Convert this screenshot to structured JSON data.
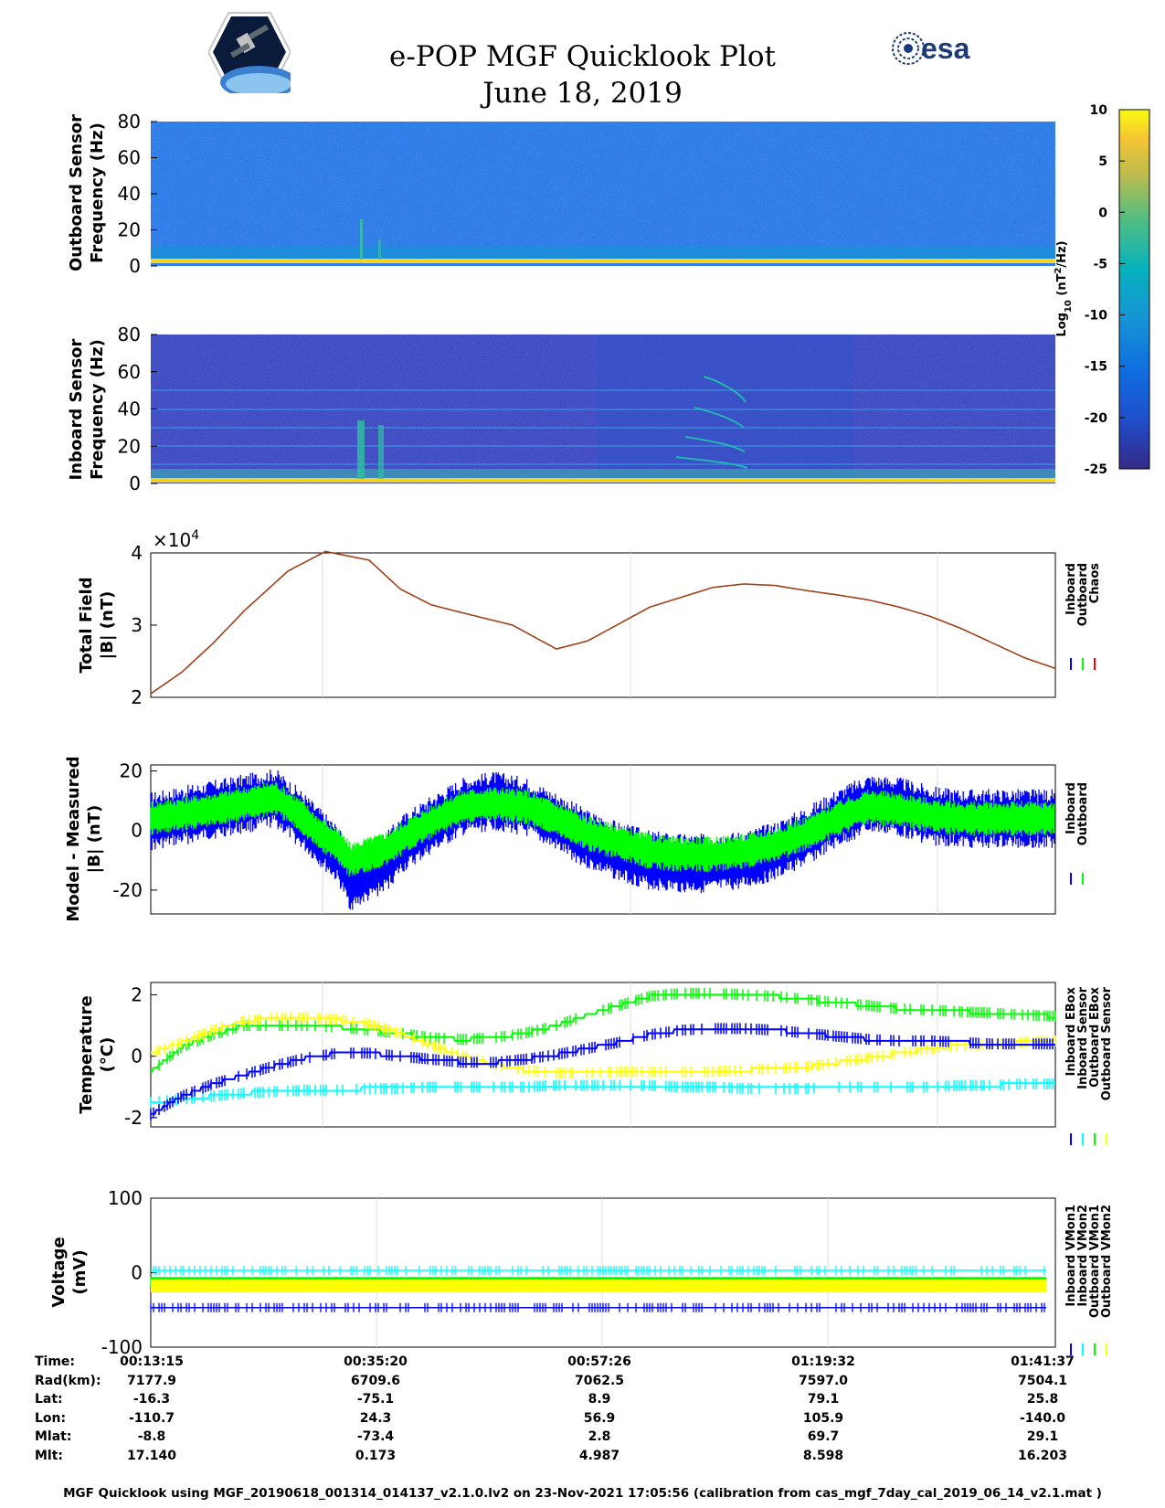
{
  "title": "e-POP MGF Quicklook Plot",
  "date": "June 18, 2019",
  "colors": {
    "inboard": "#0000ff",
    "outboard": "#00ff00",
    "chaos": "#ff0000",
    "inboard_sensor": "#00ffff",
    "outboard_sensor": "#ffff00",
    "total_field_line": "#a0401a",
    "esa_blue": "#1d3b78"
  },
  "logos": {
    "esa": "esa"
  },
  "colorbar": {
    "label_main": "Log",
    "label_sub": "10",
    "label_unit_a": " (nT",
    "label_sup": "2",
    "label_unit_b": "/Hz)",
    "ticks": [
      "10",
      "5",
      "0",
      "-5",
      "-10",
      "-15",
      "-20",
      "-25"
    ],
    "min": -25,
    "max": 10
  },
  "chart_data": [
    {
      "type": "heatmap",
      "name": "outboard-spectrogram",
      "ylabel_line1": "Outboard Sensor",
      "ylabel_line2": "Frequency (Hz)",
      "ylim": [
        0,
        80
      ],
      "yticks": [
        "80",
        "60",
        "40",
        "20",
        "0"
      ]
    },
    {
      "type": "heatmap",
      "name": "inboard-spectrogram",
      "ylabel_line1": "Inboard Sensor",
      "ylabel_line2": "Frequency (Hz)",
      "ylim": [
        0,
        80
      ],
      "yticks": [
        "80",
        "60",
        "40",
        "20",
        "0"
      ]
    },
    {
      "type": "line",
      "name": "total-field",
      "ylabel_line1": "Total Field",
      "ylabel_line2": "|B| (nT)",
      "exponent_base": "×10",
      "exponent_power": "4",
      "ylim": [
        2,
        4
      ],
      "yticks": [
        "4",
        "3",
        "2"
      ],
      "legend": [
        "Inboard",
        "Outboard",
        "Chaos"
      ],
      "x_minutes": [
        0,
        5,
        10,
        15,
        22,
        28,
        35,
        40,
        45,
        50,
        58,
        65,
        70,
        80,
        90,
        95,
        100,
        105,
        110,
        115,
        120,
        125,
        130,
        135,
        140,
        145
      ],
      "values": [
        2.05,
        2.35,
        2.75,
        3.2,
        3.75,
        4.02,
        3.9,
        3.5,
        3.28,
        3.17,
        3.0,
        2.67,
        2.78,
        3.25,
        3.52,
        3.57,
        3.55,
        3.48,
        3.42,
        3.35,
        3.25,
        3.12,
        2.95,
        2.75,
        2.55,
        2.4
      ]
    },
    {
      "type": "line",
      "name": "model-minus-measured",
      "ylabel_line1": "Model - Measured",
      "ylabel_line2": "|B| (nT)",
      "ylim": [
        -28,
        22
      ],
      "yticks": [
        "20",
        "0",
        "-20"
      ],
      "legend": [
        "Inboard",
        "Outboard"
      ],
      "x_minutes": [
        0,
        10,
        20,
        24,
        27,
        30,
        32,
        35,
        38,
        40,
        45,
        50,
        55,
        60,
        65,
        70,
        75,
        80,
        85,
        90,
        95,
        100,
        105,
        110,
        115,
        120,
        125,
        130,
        135,
        140,
        145
      ],
      "series": [
        {
          "name": "Inboard",
          "center": [
            3,
            7,
            11,
            4,
            -2,
            -8,
            -17,
            -14,
            -10,
            -5,
            2,
            8,
            10,
            8,
            3,
            -3,
            -7,
            -10,
            -11,
            -11,
            -10,
            -7,
            -2,
            4,
            9,
            8,
            5,
            4,
            4,
            4,
            4
          ],
          "amplitude": 10
        },
        {
          "name": "Outboard",
          "center": [
            4,
            7,
            11,
            5,
            -1,
            -5,
            -10,
            -8,
            -6,
            -3,
            3,
            8,
            9,
            8,
            4,
            -1,
            -4,
            -7,
            -8,
            -8,
            -7,
            -5,
            -1,
            4,
            8,
            7,
            5,
            4,
            4,
            4,
            4
          ],
          "amplitude": 6
        }
      ]
    },
    {
      "type": "line",
      "name": "temperature",
      "ylabel_line1": "Temperature",
      "ylabel_line2": "(°C)",
      "ylim": [
        -2.3,
        2.4
      ],
      "yticks": [
        "2",
        "0",
        "-2"
      ],
      "legend": [
        "Inboard EBox",
        "Inboard Sensor",
        "Outboard EBox",
        "Outboard Sensor"
      ],
      "x_minutes": [
        0,
        5,
        10,
        15,
        20,
        25,
        30,
        35,
        40,
        45,
        50,
        55,
        60,
        65,
        70,
        75,
        80,
        85,
        90,
        95,
        100,
        105,
        110,
        115,
        120,
        125,
        130,
        135,
        140,
        145
      ],
      "series": [
        {
          "name": "Inboard EBox",
          "values": [
            -1.9,
            -1.3,
            -0.9,
            -0.6,
            -0.3,
            -0.05,
            0.1,
            0.1,
            0.0,
            -0.1,
            -0.2,
            -0.2,
            -0.1,
            0.05,
            0.25,
            0.45,
            0.7,
            0.85,
            0.9,
            0.9,
            0.85,
            0.75,
            0.65,
            0.55,
            0.5,
            0.5,
            0.45,
            0.4,
            0.4,
            0.4
          ]
        },
        {
          "name": "Inboard Sensor",
          "values": [
            -1.5,
            -1.4,
            -1.3,
            -1.2,
            -1.15,
            -1.1,
            -1.1,
            -1.05,
            -1.05,
            -1.0,
            -1.0,
            -1.0,
            -1.0,
            -0.95,
            -0.95,
            -0.95,
            -0.95,
            -1.0,
            -1.0,
            -1.05,
            -1.05,
            -1.05,
            -1.0,
            -1.0,
            -1.0,
            -1.0,
            -0.95,
            -0.95,
            -0.9,
            -0.9
          ]
        },
        {
          "name": "Outboard EBox",
          "values": [
            -0.5,
            0.3,
            0.7,
            1.0,
            1.0,
            1.0,
            0.95,
            0.85,
            0.75,
            0.6,
            0.55,
            0.6,
            0.75,
            1.0,
            1.35,
            1.65,
            1.95,
            2.05,
            2.05,
            2.0,
            1.95,
            1.85,
            1.75,
            1.65,
            1.55,
            1.5,
            1.45,
            1.4,
            1.35,
            1.3
          ]
        },
        {
          "name": "Outboard Sensor",
          "values": [
            0.1,
            0.45,
            0.85,
            1.15,
            1.25,
            1.25,
            1.2,
            1.05,
            0.75,
            0.35,
            0.0,
            -0.25,
            -0.45,
            -0.55,
            -0.55,
            -0.5,
            -0.5,
            -0.5,
            -0.5,
            -0.45,
            -0.4,
            -0.35,
            -0.2,
            -0.05,
            0.1,
            0.25,
            0.35,
            0.4,
            0.45,
            0.5
          ]
        }
      ]
    },
    {
      "type": "line",
      "name": "voltage",
      "ylabel_line1": "Voltage",
      "ylabel_line2": "(mV)",
      "ylim": [
        -100,
        100
      ],
      "yticks": [
        "100",
        "0",
        "-100"
      ],
      "legend": [
        "Inboard VMon1",
        "Inboard VMon2",
        "Outboard VMon1",
        "Outboard VMon2"
      ],
      "series": [
        {
          "name": "Inboard VMon1",
          "level": -47
        },
        {
          "name": "Inboard VMon2",
          "level": 3
        },
        {
          "name": "Outboard VMon1",
          "level": -12
        },
        {
          "name": "Outboard VMon2",
          "level": -18
        }
      ]
    }
  ],
  "orbit": {
    "labels": [
      "Time:",
      "Rad(km):",
      "Lat:",
      "Lon:",
      "Mlat:",
      "Mlt:"
    ],
    "columns": [
      [
        "00:13:15",
        "7177.9",
        "-16.3",
        "-110.7",
        "-8.8",
        "17.140"
      ],
      [
        "00:35:20",
        "6709.6",
        "-75.1",
        "24.3",
        "-73.4",
        "0.173"
      ],
      [
        "00:57:26",
        "7062.5",
        "8.9",
        "56.9",
        "2.8",
        "4.987"
      ],
      [
        "01:19:32",
        "7597.0",
        "79.1",
        "105.9",
        "69.7",
        "8.598"
      ],
      [
        "01:41:37",
        "7504.1",
        "25.8",
        "-140.0",
        "29.1",
        "16.203"
      ]
    ]
  },
  "footer": "MGF Quicklook using MGF_20190618_001314_014137_v2.1.0.lv2 on 23-Nov-2021 17:05:56 (calibration from cas_mgf_7day_cal_2019_06_14_v2.1.mat )"
}
